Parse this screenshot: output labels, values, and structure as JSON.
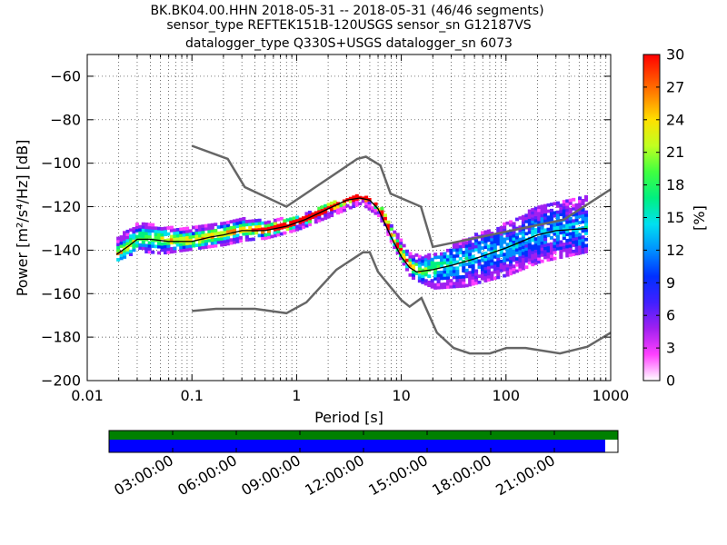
{
  "title_lines": [
    "BK.BK04.00.HHN   2018-05-31 -- 2018-05-31  (46/46 segments)",
    "sensor_type REFTEK151B-120USGS sensor_sn G12187VS",
    "datalogger_type Q330S+USGS datalogger_sn 6073"
  ],
  "chart_data": {
    "type": "heatmap",
    "title": "BK.BK04.00.HHN   2018-05-31 -- 2018-05-31  (46/46 segments)",
    "xlabel": "Period [s]",
    "ylabel": "Power [m²/s⁴/Hz] [dB]",
    "xscale": "log",
    "xlim": [
      0.01,
      1000
    ],
    "ylim": [
      -200,
      -50
    ],
    "x_ticks": [
      {
        "value": 0.01,
        "label": "0.01"
      },
      {
        "value": 0.1,
        "label": "0.1"
      },
      {
        "value": 1,
        "label": "1"
      },
      {
        "value": 10,
        "label": "10"
      },
      {
        "value": 100,
        "label": "100"
      },
      {
        "value": 1000,
        "label": "1000"
      }
    ],
    "y_ticks": [
      {
        "value": -60,
        "label": "−60"
      },
      {
        "value": -80,
        "label": "−80"
      },
      {
        "value": -100,
        "label": "−100"
      },
      {
        "value": -120,
        "label": "−120"
      },
      {
        "value": -140,
        "label": "−140"
      },
      {
        "value": -160,
        "label": "−160"
      },
      {
        "value": -180,
        "label": "−180"
      },
      {
        "value": -200,
        "label": "−200"
      }
    ],
    "grid": "dotted",
    "colorbar": {
      "label": "[%]",
      "range": [
        0,
        30
      ],
      "ticks": [
        "0",
        "3",
        "6",
        "9",
        "12",
        "15",
        "18",
        "21",
        "24",
        "27",
        "30"
      ]
    },
    "mode_curve": [
      [
        0.019,
        -142
      ],
      [
        0.025,
        -138
      ],
      [
        0.03,
        -135
      ],
      [
        0.04,
        -135
      ],
      [
        0.06,
        -136
      ],
      [
        0.1,
        -136
      ],
      [
        0.15,
        -134
      ],
      [
        0.2,
        -133
      ],
      [
        0.3,
        -131
      ],
      [
        0.5,
        -131
      ],
      [
        0.8,
        -129
      ],
      [
        1.2,
        -126
      ],
      [
        2,
        -121
      ],
      [
        3,
        -117
      ],
      [
        4,
        -116
      ],
      [
        5,
        -117
      ],
      [
        6,
        -121
      ],
      [
        7,
        -128
      ],
      [
        8,
        -134
      ],
      [
        10,
        -143
      ],
      [
        12,
        -148
      ],
      [
        14,
        -150
      ],
      [
        20,
        -149
      ],
      [
        30,
        -147
      ],
      [
        50,
        -144
      ],
      [
        100,
        -139
      ],
      [
        200,
        -133
      ],
      [
        300,
        -131
      ],
      [
        600,
        -130
      ]
    ],
    "density_band": [
      {
        "x": 0.019,
        "center": -140,
        "half_width": 5
      },
      {
        "x": 0.03,
        "center": -134,
        "half_width": 7
      },
      {
        "x": 0.05,
        "center": -136,
        "half_width": 6
      },
      {
        "x": 0.1,
        "center": -135,
        "half_width": 5
      },
      {
        "x": 0.2,
        "center": -133,
        "half_width": 5
      },
      {
        "x": 0.3,
        "center": -131,
        "half_width": 5
      },
      {
        "x": 0.5,
        "center": -131,
        "half_width": 4
      },
      {
        "x": 1,
        "center": -128,
        "half_width": 3
      },
      {
        "x": 2,
        "center": -122,
        "half_width": 3
      },
      {
        "x": 4,
        "center": -117,
        "half_width": 2
      },
      {
        "x": 6,
        "center": -122,
        "half_width": 3
      },
      {
        "x": 8,
        "center": -134,
        "half_width": 4
      },
      {
        "x": 12,
        "center": -148,
        "half_width": 5
      },
      {
        "x": 20,
        "center": -150,
        "half_width": 8
      },
      {
        "x": 40,
        "center": -146,
        "half_width": 11
      },
      {
        "x": 100,
        "center": -140,
        "half_width": 12
      },
      {
        "x": 200,
        "center": -133,
        "half_width": 13
      },
      {
        "x": 600,
        "center": -128,
        "half_width": 13
      }
    ],
    "nhnm_curve": [
      [
        0.1,
        -92
      ],
      [
        0.22,
        -98
      ],
      [
        0.32,
        -111
      ],
      [
        0.8,
        -120
      ],
      [
        3.8,
        -98
      ],
      [
        4.6,
        -97
      ],
      [
        6.3,
        -101
      ],
      [
        7.9,
        -114
      ],
      [
        15.4,
        -120
      ],
      [
        20,
        -138.5
      ],
      [
        354.8,
        -126
      ],
      [
        1000,
        -112
      ]
    ],
    "nlnm_curve": [
      [
        0.1,
        -168
      ],
      [
        0.17,
        -167
      ],
      [
        0.4,
        -167
      ],
      [
        0.8,
        -169
      ],
      [
        1.24,
        -164
      ],
      [
        2.4,
        -149
      ],
      [
        4.3,
        -141
      ],
      [
        5,
        -141
      ],
      [
        6,
        -150
      ],
      [
        10,
        -163
      ],
      [
        12,
        -166
      ],
      [
        15.6,
        -162
      ],
      [
        21.9,
        -178
      ],
      [
        31.6,
        -185
      ],
      [
        45,
        -187.5
      ],
      [
        70,
        -187.5
      ],
      [
        101,
        -185
      ],
      [
        154,
        -185
      ],
      [
        328,
        -187.5
      ],
      [
        600,
        -184.4
      ],
      [
        1000,
        -178
      ]
    ],
    "timeline": {
      "tick_labels": [
        "03:00:00",
        "06:00:00",
        "09:00:00",
        "12:00:00",
        "15:00:00",
        "18:00:00",
        "21:00:00"
      ],
      "tick_hours": [
        3,
        6,
        9,
        12,
        15,
        18,
        21
      ],
      "range_hours": [
        0,
        24
      ],
      "top_bar_coverage": 1.0,
      "bottom_bar_coverage": 0.975,
      "top_bar_color": "#008000",
      "bottom_bar_color": "#0000ff"
    }
  },
  "colors": {
    "mode_line": "#000000",
    "model_curves": "#666666",
    "axes": "#000000"
  }
}
